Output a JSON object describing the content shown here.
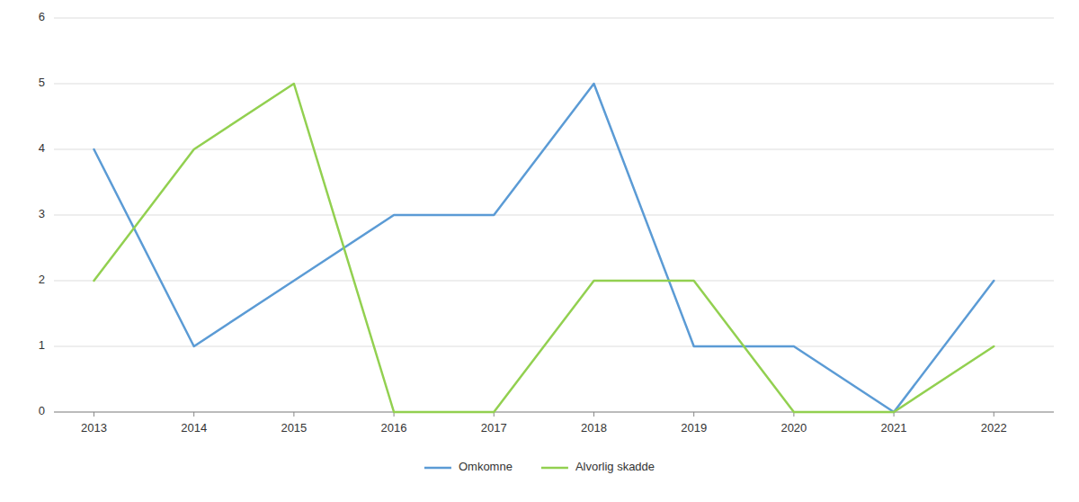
{
  "chart_data": {
    "type": "line",
    "x": [
      2013,
      2014,
      2015,
      2016,
      2017,
      2018,
      2019,
      2020,
      2021,
      2022
    ],
    "series": [
      {
        "name": "Omkomne",
        "color": "#5B9BD5",
        "values": [
          4,
          1,
          2,
          3,
          3,
          5,
          1,
          1,
          0,
          2
        ]
      },
      {
        "name": "Alvorlig skadde",
        "color": "#92D050",
        "values": [
          2,
          4,
          5,
          0,
          0,
          2,
          2,
          0,
          0,
          1
        ]
      }
    ],
    "xlim": [
      2012.6,
      2022.6
    ],
    "xticks": [
      2013,
      2014,
      2015,
      2016,
      2017,
      2018,
      2019,
      2020,
      2021,
      2022
    ],
    "ylim": [
      0,
      6
    ],
    "yticks": [
      0,
      1,
      2,
      3,
      4,
      5,
      6
    ],
    "grid": true,
    "legend": "bottom"
  }
}
